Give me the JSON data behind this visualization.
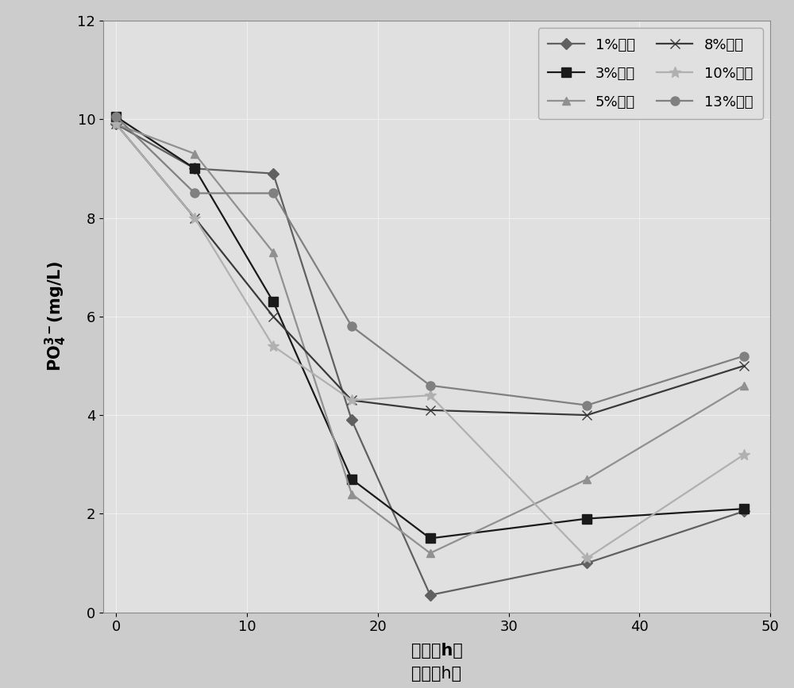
{
  "x_ticks": [
    0,
    10,
    20,
    30,
    40,
    50
  ],
  "xlim": [
    -1,
    50
  ],
  "ylim": [
    0,
    12
  ],
  "y_ticks": [
    0,
    2,
    4,
    6,
    8,
    10,
    12
  ],
  "xlabel_cn": "时间（",
  "xlabel_h": "h",
  "xlabel_end": "）",
  "ylabel_top": "PO",
  "ylabel_sub": "4",
  "ylabel_sup": "3-",
  "ylabel_bottom": "(mg/L)",
  "series": [
    {
      "label": "1%盐度",
      "color": "#606060",
      "marker": "D",
      "markersize": 7,
      "markerfacecolor": "#606060",
      "x": [
        0,
        6,
        12,
        18,
        24,
        36,
        48
      ],
      "y": [
        9.9,
        9.0,
        8.9,
        3.9,
        0.35,
        1.0,
        2.05
      ]
    },
    {
      "label": "3%盐度",
      "color": "#1a1a1a",
      "marker": "s",
      "markersize": 8,
      "markerfacecolor": "#1a1a1a",
      "x": [
        0,
        6,
        12,
        18,
        24,
        36,
        48
      ],
      "y": [
        10.05,
        9.0,
        6.3,
        2.7,
        1.5,
        1.9,
        2.1
      ]
    },
    {
      "label": "5%盐度",
      "color": "#909090",
      "marker": "^",
      "markersize": 7,
      "markerfacecolor": "#909090",
      "x": [
        0,
        6,
        12,
        18,
        24,
        36,
        48
      ],
      "y": [
        9.9,
        9.3,
        7.3,
        2.4,
        1.2,
        2.7,
        4.6
      ]
    },
    {
      "label": "8%盐度",
      "color": "#3a3a3a",
      "marker": "x",
      "markersize": 8,
      "markerfacecolor": "#3a3a3a",
      "x": [
        0,
        6,
        12,
        18,
        24,
        36,
        48
      ],
      "y": [
        9.9,
        8.0,
        6.0,
        4.3,
        4.1,
        4.0,
        5.0
      ]
    },
    {
      "label": "10%盐度",
      "color": "#b0b0b0",
      "marker": "*",
      "markersize": 10,
      "markerfacecolor": "#b0b0b0",
      "x": [
        0,
        6,
        12,
        18,
        24,
        36,
        48
      ],
      "y": [
        9.9,
        8.0,
        5.4,
        4.3,
        4.4,
        1.1,
        3.2
      ]
    },
    {
      "label": "13%盐度",
      "color": "#808080",
      "marker": "o",
      "markersize": 8,
      "markerfacecolor": "#808080",
      "x": [
        0,
        6,
        12,
        18,
        24,
        36,
        48
      ],
      "y": [
        10.05,
        8.5,
        8.5,
        5.8,
        4.6,
        4.2,
        5.2
      ]
    }
  ],
  "legend_order": [
    0,
    1,
    2,
    3,
    4,
    5
  ],
  "legend_ncol": 2,
  "legend_loc": "upper right",
  "background_color": "#cccccc",
  "plot_bg_color": "#e0e0e0",
  "grid_color": "#f0f0f0",
  "label_fontsize": 15,
  "tick_fontsize": 13,
  "legend_fontsize": 13
}
